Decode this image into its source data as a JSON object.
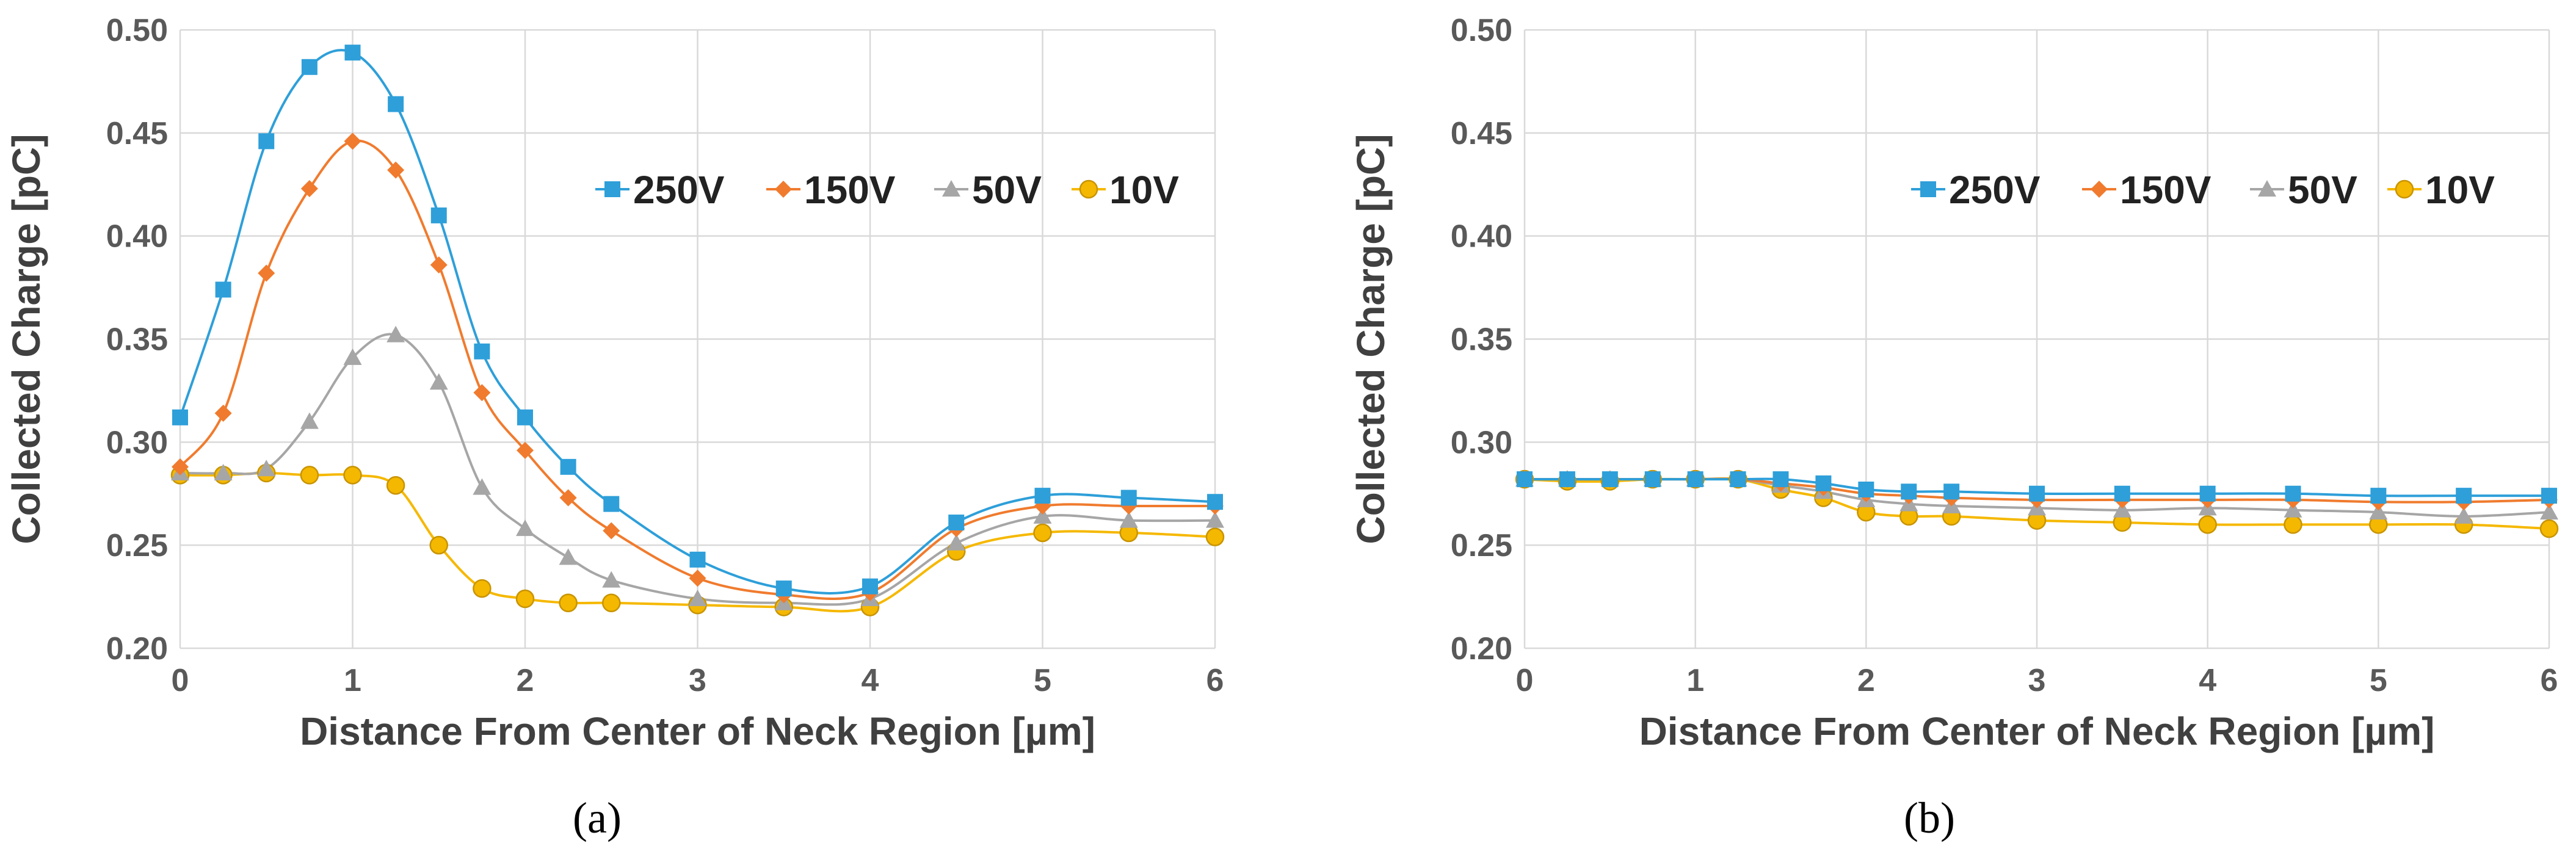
{
  "chart_data": [
    {
      "type": "line",
      "caption": "(a)",
      "xlabel": "Distance From Center of Neck Region [µm]",
      "ylabel": "Collected Charge [pC]",
      "xlim": [
        0,
        6
      ],
      "ylim": [
        0.2,
        0.5
      ],
      "xticks": [
        "0",
        "1",
        "2",
        "3",
        "4",
        "5",
        "6"
      ],
      "yticks": [
        "0.20",
        "0.25",
        "0.30",
        "0.35",
        "0.40",
        "0.45",
        "0.50"
      ],
      "grid": true,
      "legend": "top-right",
      "series": [
        {
          "name": "250V",
          "color": "#2e9fd9",
          "marker": "square",
          "x": [
            0,
            0.25,
            0.5,
            0.75,
            1,
            1.25,
            1.5,
            1.75,
            2,
            2.25,
            2.5,
            3,
            3.5,
            4,
            4.5,
            5,
            5.5,
            6
          ],
          "y": [
            0.312,
            0.374,
            0.446,
            0.482,
            0.489,
            0.464,
            0.41,
            0.344,
            0.312,
            0.288,
            0.27,
            0.243,
            0.229,
            0.23,
            0.261,
            0.274,
            0.273,
            0.271
          ]
        },
        {
          "name": "150V",
          "color": "#f07b2e",
          "marker": "diamond",
          "x": [
            0,
            0.25,
            0.5,
            0.75,
            1,
            1.25,
            1.5,
            1.75,
            2,
            2.25,
            2.5,
            3,
            3.5,
            4,
            4.5,
            5,
            5.5,
            6
          ],
          "y": [
            0.288,
            0.314,
            0.382,
            0.423,
            0.446,
            0.432,
            0.386,
            0.324,
            0.296,
            0.273,
            0.257,
            0.234,
            0.226,
            0.227,
            0.258,
            0.269,
            0.269,
            0.269
          ]
        },
        {
          "name": "50V",
          "color": "#a6a6a6",
          "marker": "triangle",
          "x": [
            0,
            0.25,
            0.5,
            0.75,
            1,
            1.25,
            1.5,
            1.75,
            2,
            2.25,
            2.5,
            3,
            3.5,
            4,
            4.5,
            5,
            5.5,
            6
          ],
          "y": [
            0.285,
            0.285,
            0.287,
            0.31,
            0.341,
            0.352,
            0.329,
            0.278,
            0.258,
            0.244,
            0.233,
            0.224,
            0.222,
            0.224,
            0.251,
            0.264,
            0.262,
            0.262
          ]
        },
        {
          "name": "10V",
          "color": "#f5b800",
          "marker": "circle",
          "x": [
            0,
            0.25,
            0.5,
            0.75,
            1,
            1.25,
            1.5,
            1.75,
            2,
            2.25,
            2.5,
            3,
            3.5,
            4,
            4.5,
            5,
            5.5,
            6
          ],
          "y": [
            0.284,
            0.284,
            0.285,
            0.284,
            0.284,
            0.279,
            0.25,
            0.229,
            0.224,
            0.222,
            0.222,
            0.221,
            0.22,
            0.22,
            0.247,
            0.256,
            0.256,
            0.254
          ]
        }
      ]
    },
    {
      "type": "line",
      "caption": "(b)",
      "xlabel": "Distance From Center of Neck Region [µm]",
      "ylabel": "Collected Charge [pC]",
      "xlim": [
        0,
        6
      ],
      "ylim": [
        0.2,
        0.5
      ],
      "xticks": [
        "0",
        "1",
        "2",
        "3",
        "4",
        "5",
        "6"
      ],
      "yticks": [
        "0.20",
        "0.25",
        "0.30",
        "0.35",
        "0.40",
        "0.45",
        "0.50"
      ],
      "grid": true,
      "legend": "top-right",
      "series": [
        {
          "name": "250V",
          "color": "#2e9fd9",
          "marker": "square",
          "x": [
            0,
            0.25,
            0.5,
            0.75,
            1,
            1.25,
            1.5,
            1.75,
            2,
            2.25,
            2.5,
            3,
            3.5,
            4,
            4.5,
            5,
            5.5,
            6
          ],
          "y": [
            0.282,
            0.282,
            0.282,
            0.282,
            0.282,
            0.282,
            0.282,
            0.28,
            0.277,
            0.276,
            0.276,
            0.275,
            0.275,
            0.275,
            0.275,
            0.274,
            0.274,
            0.274
          ]
        },
        {
          "name": "150V",
          "color": "#f07b2e",
          "marker": "diamond",
          "x": [
            0,
            0.25,
            0.5,
            0.75,
            1,
            1.25,
            1.5,
            1.75,
            2,
            2.25,
            2.5,
            3,
            3.5,
            4,
            4.5,
            5,
            5.5,
            6
          ],
          "y": [
            0.282,
            0.282,
            0.282,
            0.282,
            0.282,
            0.282,
            0.28,
            0.278,
            0.275,
            0.274,
            0.273,
            0.272,
            0.272,
            0.272,
            0.272,
            0.271,
            0.271,
            0.272
          ]
        },
        {
          "name": "50V",
          "color": "#a6a6a6",
          "marker": "triangle",
          "x": [
            0,
            0.25,
            0.5,
            0.75,
            1,
            1.25,
            1.5,
            1.75,
            2,
            2.25,
            2.5,
            3,
            3.5,
            4,
            4.5,
            5,
            5.5,
            6
          ],
          "y": [
            0.282,
            0.282,
            0.282,
            0.282,
            0.282,
            0.282,
            0.279,
            0.276,
            0.272,
            0.27,
            0.269,
            0.268,
            0.267,
            0.268,
            0.267,
            0.266,
            0.264,
            0.266
          ]
        },
        {
          "name": "10V",
          "color": "#f5b800",
          "marker": "circle",
          "x": [
            0,
            0.25,
            0.5,
            0.75,
            1,
            1.25,
            1.5,
            1.75,
            2,
            2.25,
            2.5,
            3,
            3.5,
            4,
            4.5,
            5,
            5.5,
            6
          ],
          "y": [
            0.282,
            0.281,
            0.281,
            0.282,
            0.282,
            0.282,
            0.277,
            0.273,
            0.266,
            0.264,
            0.264,
            0.262,
            0.261,
            0.26,
            0.26,
            0.26,
            0.26,
            0.258
          ]
        }
      ]
    }
  ]
}
